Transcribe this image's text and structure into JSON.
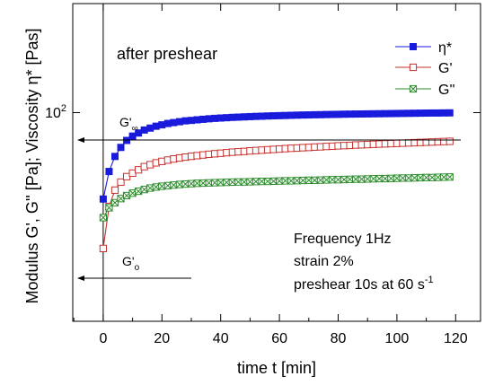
{
  "chart_data": {
    "type": "line",
    "xlabel": "time t [min]",
    "ylabel": "Modulus G', G'' [Pa]; Viscosity η* [Pas]",
    "xlim": [
      -10,
      130
    ],
    "x_ticks": [
      0,
      20,
      40,
      60,
      80,
      100,
      120
    ],
    "y_tick_value": 100,
    "y_tick_label_base": "10",
    "y_tick_label_exp": "2",
    "scale": "log-y",
    "grid": false,
    "legend_position": "top-right",
    "annotations": {
      "condition": "after preshear",
      "g_inf_base": "G'",
      "g_inf_sub": "∞",
      "g_0_base": "G'",
      "g_0_sub": "o",
      "info_line1": "Frequency 1Hz",
      "info_line2": "strain 2%",
      "info_line3": "preshear 10s at 60 s",
      "info_line3_exp": "-1"
    },
    "series": [
      {
        "name": "η*",
        "color": "#1a1adc",
        "marker": "filled-square",
        "x": [
          0,
          2,
          4,
          6,
          8,
          10,
          12,
          14,
          16,
          18,
          20,
          22,
          24,
          26,
          28,
          30,
          32,
          34,
          36,
          38,
          40,
          42,
          44,
          46,
          48,
          50,
          52,
          54,
          56,
          58,
          60,
          62,
          64,
          66,
          68,
          70,
          72,
          74,
          76,
          78,
          80,
          82,
          84,
          86,
          88,
          90,
          92,
          94,
          96,
          98,
          100,
          102,
          104,
          106,
          108,
          110,
          112,
          114,
          116,
          118
        ],
        "values": [
          33,
          47,
          57,
          64,
          70,
          74,
          77,
          80,
          82,
          84,
          85.5,
          87,
          88,
          89,
          90,
          90.5,
          91.2,
          91.8,
          92.4,
          92.9,
          93.3,
          93.7,
          94.1,
          94.4,
          94.7,
          95,
          95.3,
          95.5,
          95.8,
          96,
          96.2,
          96.4,
          96.6,
          96.8,
          97,
          97.1,
          97.3,
          97.4,
          97.6,
          97.7,
          97.8,
          98,
          98.1,
          98.2,
          98.3,
          98.4,
          98.5,
          98.6,
          98.7,
          98.8,
          98.9,
          99,
          99.1,
          99.2,
          99.3,
          99.4,
          99.5,
          99.5,
          99.6,
          99.7
        ]
      },
      {
        "name": "G'",
        "color": "#c8302c",
        "marker": "open-square",
        "x": [
          0,
          2,
          4,
          6,
          8,
          10,
          12,
          14,
          16,
          18,
          20,
          22,
          24,
          26,
          28,
          30,
          32,
          34,
          36,
          38,
          40,
          42,
          44,
          46,
          48,
          50,
          52,
          54,
          56,
          58,
          60,
          62,
          64,
          66,
          68,
          70,
          72,
          74,
          76,
          78,
          80,
          82,
          84,
          86,
          88,
          90,
          92,
          94,
          96,
          98,
          100,
          102,
          104,
          106,
          108,
          110,
          112,
          114,
          116,
          118
        ],
        "values": [
          17.5,
          30,
          37,
          41,
          44,
          46,
          48,
          50,
          51.3,
          52.5,
          53.5,
          54.4,
          55.2,
          55.9,
          56.5,
          57.1,
          57.6,
          58.1,
          58.6,
          59,
          59.4,
          59.8,
          60.2,
          60.5,
          60.8,
          61.2,
          61.5,
          61.8,
          62.1,
          62.4,
          62.7,
          63,
          63.3,
          63.5,
          63.8,
          64,
          64.3,
          64.5,
          64.8,
          65,
          65.3,
          65.5,
          65.7,
          66,
          66.2,
          66.4,
          66.6,
          66.8,
          67,
          67.2,
          67.4,
          67.6,
          67.8,
          68,
          68.2,
          68.4,
          68.6,
          68.8,
          69,
          69.2
        ]
      },
      {
        "name": "G''",
        "color": "#2c8c2c",
        "marker": "crossed-square",
        "x": [
          0,
          2,
          4,
          6,
          8,
          10,
          12,
          14,
          16,
          18,
          20,
          22,
          24,
          26,
          28,
          30,
          32,
          34,
          36,
          38,
          40,
          42,
          44,
          46,
          48,
          50,
          52,
          54,
          56,
          58,
          60,
          62,
          64,
          66,
          68,
          70,
          72,
          74,
          76,
          78,
          80,
          82,
          84,
          86,
          88,
          90,
          92,
          94,
          96,
          98,
          100,
          102,
          104,
          106,
          108,
          110,
          112,
          114,
          116,
          118
        ],
        "values": [
          26,
          29.5,
          31.5,
          33.2,
          34.5,
          35.6,
          36.5,
          37.3,
          38,
          38.5,
          38.9,
          39.2,
          39.5,
          39.8,
          40,
          40.2,
          40.4,
          40.5,
          40.6,
          40.7,
          40.8,
          40.9,
          41,
          41.1,
          41.1,
          41.2,
          41.3,
          41.4,
          41.4,
          41.5,
          41.6,
          41.7,
          41.7,
          41.8,
          41.9,
          42,
          42,
          42.1,
          42.2,
          42.3,
          42.3,
          42.4,
          42.5,
          42.6,
          42.6,
          42.7,
          42.8,
          42.9,
          42.9,
          43,
          43.1,
          43.2,
          43.2,
          43.3,
          43.4,
          43.5,
          43.5,
          43.6,
          43.7,
          43.8
        ]
      }
    ]
  }
}
